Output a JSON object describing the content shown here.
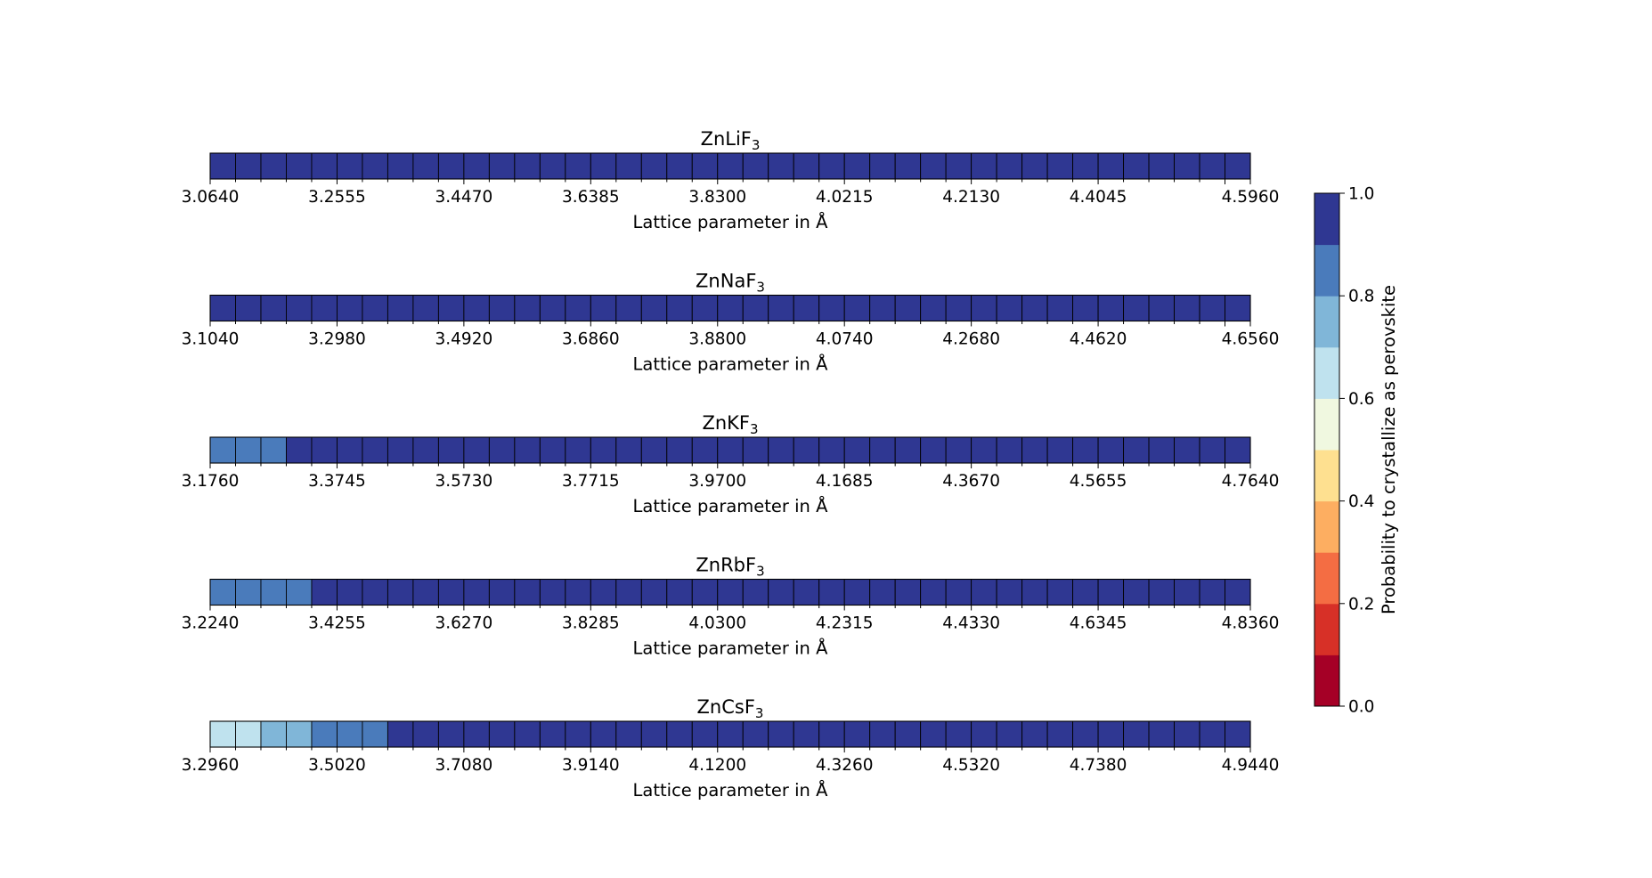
{
  "chart_data": {
    "type": "heatmap",
    "xlabel": "Lattice parameter in Å",
    "panels": [
      {
        "title_base": "ZnLiF",
        "title_sub": "3",
        "tick_labels": [
          "3.0640",
          "3.2555",
          "3.4470",
          "3.6385",
          "3.8300",
          "4.0215",
          "4.2130",
          "4.4045",
          "4.5960"
        ],
        "values": [
          1.0,
          1.0,
          1.0,
          1.0,
          1.0,
          1.0,
          1.0,
          1.0,
          1.0,
          1.0,
          1.0,
          1.0,
          1.0,
          1.0,
          1.0,
          1.0,
          1.0,
          1.0,
          1.0,
          1.0,
          1.0,
          1.0,
          1.0,
          1.0,
          1.0,
          1.0,
          1.0,
          1.0,
          1.0,
          1.0,
          1.0,
          1.0,
          1.0,
          1.0,
          1.0,
          1.0,
          1.0,
          1.0,
          1.0,
          1.0,
          1.0
        ]
      },
      {
        "title_base": "ZnNaF",
        "title_sub": "3",
        "tick_labels": [
          "3.1040",
          "3.2980",
          "3.4920",
          "3.6860",
          "3.8800",
          "4.0740",
          "4.2680",
          "4.4620",
          "4.6560"
        ],
        "values": [
          1.0,
          1.0,
          1.0,
          1.0,
          1.0,
          1.0,
          1.0,
          1.0,
          1.0,
          1.0,
          1.0,
          1.0,
          1.0,
          1.0,
          1.0,
          1.0,
          1.0,
          1.0,
          1.0,
          1.0,
          1.0,
          1.0,
          1.0,
          1.0,
          1.0,
          1.0,
          1.0,
          1.0,
          1.0,
          1.0,
          1.0,
          1.0,
          1.0,
          1.0,
          1.0,
          1.0,
          1.0,
          1.0,
          1.0,
          1.0,
          1.0
        ]
      },
      {
        "title_base": "ZnKF",
        "title_sub": "3",
        "tick_labels": [
          "3.1760",
          "3.3745",
          "3.5730",
          "3.7715",
          "3.9700",
          "4.1685",
          "4.3670",
          "4.5655",
          "4.7640"
        ],
        "values": [
          0.85,
          0.85,
          0.85,
          1.0,
          1.0,
          1.0,
          1.0,
          1.0,
          1.0,
          1.0,
          1.0,
          1.0,
          1.0,
          1.0,
          1.0,
          1.0,
          1.0,
          1.0,
          1.0,
          1.0,
          1.0,
          1.0,
          1.0,
          1.0,
          1.0,
          1.0,
          1.0,
          1.0,
          1.0,
          1.0,
          1.0,
          1.0,
          1.0,
          1.0,
          1.0,
          1.0,
          1.0,
          1.0,
          1.0,
          1.0,
          1.0
        ]
      },
      {
        "title_base": "ZnRbF",
        "title_sub": "3",
        "tick_labels": [
          "3.2240",
          "3.4255",
          "3.6270",
          "3.8285",
          "4.0300",
          "4.2315",
          "4.4330",
          "4.6345",
          "4.8360"
        ],
        "values": [
          0.85,
          0.85,
          0.85,
          0.85,
          1.0,
          1.0,
          1.0,
          1.0,
          1.0,
          1.0,
          1.0,
          1.0,
          1.0,
          1.0,
          1.0,
          1.0,
          1.0,
          1.0,
          1.0,
          1.0,
          1.0,
          1.0,
          1.0,
          1.0,
          1.0,
          1.0,
          1.0,
          1.0,
          1.0,
          1.0,
          1.0,
          1.0,
          1.0,
          1.0,
          1.0,
          1.0,
          1.0,
          1.0,
          1.0,
          1.0,
          1.0
        ]
      },
      {
        "title_base": "ZnCsF",
        "title_sub": "3",
        "tick_labels": [
          "3.2960",
          "3.5020",
          "3.7080",
          "3.9140",
          "4.1200",
          "4.3260",
          "4.5320",
          "4.7380",
          "4.9440"
        ],
        "values": [
          0.65,
          0.65,
          0.75,
          0.75,
          0.85,
          0.85,
          0.85,
          1.0,
          1.0,
          1.0,
          1.0,
          1.0,
          1.0,
          1.0,
          1.0,
          1.0,
          1.0,
          1.0,
          1.0,
          1.0,
          1.0,
          1.0,
          1.0,
          1.0,
          1.0,
          1.0,
          1.0,
          1.0,
          1.0,
          1.0,
          1.0,
          1.0,
          1.0,
          1.0,
          1.0,
          1.0,
          1.0,
          1.0,
          1.0,
          1.0,
          1.0
        ]
      }
    ],
    "colorbar": {
      "label": "Probability to crystallize as perovskite",
      "range": [
        0.0,
        1.0
      ],
      "tick_labels": [
        "0.0",
        "0.2",
        "0.4",
        "0.6",
        "0.8",
        "1.0"
      ],
      "colors": [
        "#a50026",
        "#d73027",
        "#f46d43",
        "#fdae61",
        "#fee090",
        "#f0f8e0",
        "#bfe2ee",
        "#80b6d8",
        "#4a7bbb",
        "#2f3792"
      ]
    }
  }
}
